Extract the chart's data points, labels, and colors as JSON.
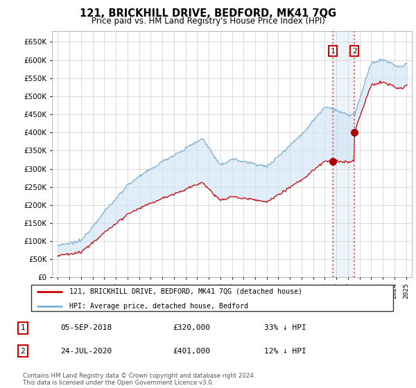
{
  "title": "121, BRICKHILL DRIVE, BEDFORD, MK41 7QG",
  "subtitle": "Price paid vs. HM Land Registry's House Price Index (HPI)",
  "ylabel_values": [
    0,
    50000,
    100000,
    150000,
    200000,
    250000,
    300000,
    350000,
    400000,
    450000,
    500000,
    550000,
    600000,
    650000
  ],
  "ylim": [
    0,
    680000
  ],
  "xlim_start": 1994.5,
  "xlim_end": 2025.5,
  "hpi_color": "#7aafd4",
  "price_color": "#cc0000",
  "transaction1_date": 2018.68,
  "transaction1_price": 320000,
  "transaction2_date": 2020.55,
  "transaction2_price": 401000,
  "vline_color": "#e06060",
  "legend_label1": "121, BRICKHILL DRIVE, BEDFORD, MK41 7QG (detached house)",
  "legend_label2": "HPI: Average price, detached house, Bedford",
  "table_row1": [
    "1",
    "05-SEP-2018",
    "£320,000",
    "33% ↓ HPI"
  ],
  "table_row2": [
    "2",
    "24-JUL-2020",
    "£401,000",
    "12% ↓ HPI"
  ],
  "footer": "Contains HM Land Registry data © Crown copyright and database right 2024.\nThis data is licensed under the Open Government Licence v3.0.",
  "background_color": "#ffffff",
  "grid_color": "#cccccc"
}
